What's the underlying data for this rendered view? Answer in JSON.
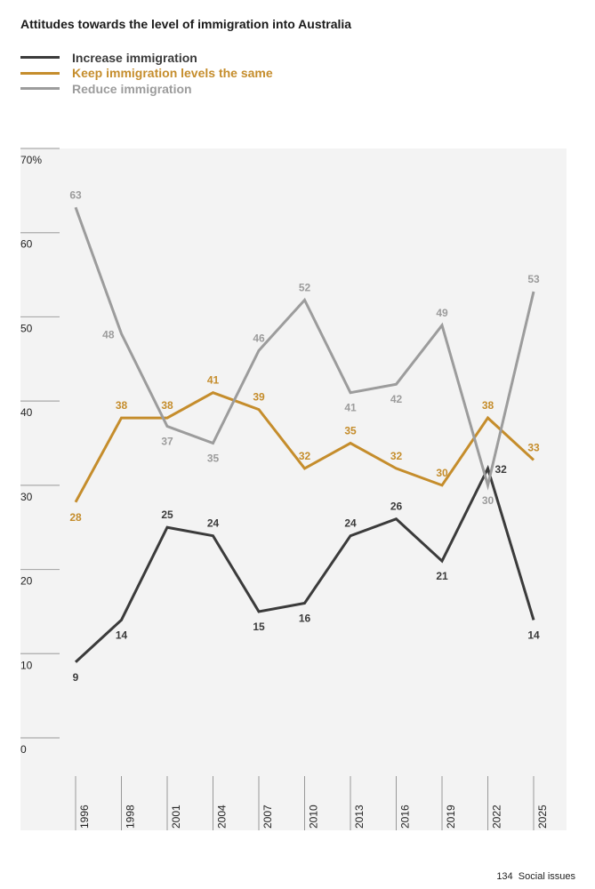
{
  "chart_data": {
    "type": "line",
    "title": "Attitudes towards the level of immigration into Australia",
    "categories": [
      "1996",
      "1998",
      "2001",
      "2004",
      "2007",
      "2010",
      "2013",
      "2016",
      "2019",
      "2022",
      "2025"
    ],
    "yticks": [
      "0",
      "10",
      "20",
      "30",
      "40",
      "50",
      "60",
      "70%"
    ],
    "ylim": [
      0,
      70
    ],
    "ylabel": "",
    "xlabel": "",
    "legend_position": "top-left",
    "series": [
      {
        "name": "Increase immigration",
        "color": "#3b3b3b",
        "values": [
          9,
          14,
          25,
          24,
          15,
          16,
          24,
          26,
          21,
          32,
          14
        ]
      },
      {
        "name": "Keep immigration levels the same",
        "color": "#c58d2c",
        "values": [
          28,
          38,
          38,
          41,
          39,
          32,
          35,
          32,
          30,
          38,
          33
        ]
      },
      {
        "name": "Reduce immigration",
        "color": "#9c9c9c",
        "values": [
          63,
          48,
          37,
          35,
          46,
          52,
          41,
          42,
          49,
          30,
          53
        ]
      }
    ]
  },
  "footer": {
    "page": "134",
    "section": "Social issues"
  }
}
